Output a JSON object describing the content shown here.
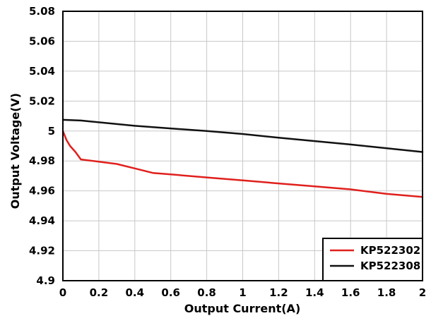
{
  "chart_data": {
    "type": "line",
    "title": "",
    "xlabel": "Output Current(A)",
    "ylabel": "Output Voltage(V)",
    "xlim": [
      0,
      2
    ],
    "ylim": [
      4.9,
      5.08
    ],
    "x_ticks": [
      "0",
      "0.2",
      "0.4",
      "0.6",
      "0.8",
      "1",
      "1.2",
      "1.4",
      "1.6",
      "1.8",
      "2"
    ],
    "y_ticks": [
      "4.9",
      "4.92",
      "4.94",
      "4.96",
      "4.98",
      "5",
      "5.02",
      "5.04",
      "5.06",
      "5.08"
    ],
    "grid": true,
    "legend_position": "bottom-right",
    "series": [
      {
        "name": "KP522302",
        "color": "#e0201c",
        "x": [
          0,
          0.02,
          0.04,
          0.07,
          0.1,
          0.2,
          0.3,
          0.4,
          0.5,
          0.6,
          0.8,
          1.0,
          1.2,
          1.4,
          1.6,
          1.8,
          2.0
        ],
        "y": [
          5.0,
          4.994,
          4.99,
          4.986,
          4.981,
          4.9795,
          4.978,
          4.975,
          4.972,
          4.971,
          4.969,
          4.967,
          4.965,
          4.963,
          4.961,
          4.958,
          4.956
        ]
      },
      {
        "name": "KP522308",
        "color": "#111111",
        "x": [
          0,
          0.1,
          0.4,
          0.8,
          1.0,
          1.2,
          1.6,
          2.0
        ],
        "y": [
          5.0075,
          5.007,
          5.0035,
          5.0,
          4.998,
          4.9955,
          4.991,
          4.986
        ]
      }
    ]
  }
}
